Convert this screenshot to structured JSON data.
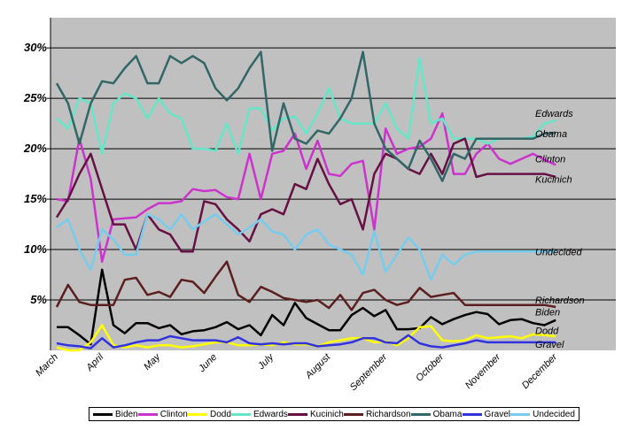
{
  "chart_data": {
    "type": "line",
    "title": "",
    "xlabel": "",
    "ylabel": "",
    "ylim": [
      0,
      33
    ],
    "y_ticks": [
      "5%",
      "10%",
      "15%",
      "20%",
      "25%",
      "30%"
    ],
    "y_tick_values": [
      5,
      10,
      15,
      20,
      25,
      30
    ],
    "x_ticks": [
      "March",
      "April",
      "May",
      "June",
      "July",
      "August",
      "September",
      "October",
      "November",
      "December"
    ],
    "x_tick_positions": [
      0,
      4,
      9,
      14,
      19,
      24,
      29,
      34,
      39,
      44
    ],
    "x_range": [
      0,
      45
    ],
    "grid": true,
    "legend": "bottom",
    "series": [
      {
        "name": "Biden",
        "color": "#000000",
        "values": [
          2.3,
          2.3,
          1.5,
          0.6,
          8,
          2.5,
          1.7,
          2.7,
          2.7,
          2.2,
          2.5,
          1.6,
          1.9,
          2,
          2.3,
          2.8,
          2.1,
          2.5,
          1.5,
          3.5,
          2.5,
          4.7,
          3.2,
          2.6,
          2,
          2,
          3.5,
          4.2,
          3.4,
          4,
          2.1,
          2.1,
          2.2,
          3.3,
          2.6,
          3.1,
          3.5,
          3.8,
          3.6,
          2.6,
          3,
          3.1,
          2.7,
          2.5,
          3
        ]
      },
      {
        "name": "Clinton",
        "color": "#cc33cc",
        "values": [
          15,
          14.8,
          21,
          17,
          8.8,
          13,
          13.1,
          13.2,
          14,
          14.6,
          14.6,
          14.8,
          16,
          15.8,
          15.9,
          15.2,
          15,
          19.5,
          15,
          19.5,
          19.8,
          21.5,
          18,
          20.8,
          17.5,
          17.3,
          18.5,
          18.8,
          12,
          22,
          19.5,
          20,
          20.2,
          21,
          23.5,
          17.5,
          17.5,
          19.5,
          20.5,
          19,
          18.5,
          19,
          19.5,
          18.9,
          18.4
        ]
      },
      {
        "name": "Dodd",
        "color": "#ffff00",
        "values": [
          0.3,
          0,
          0,
          0.8,
          2.5,
          0.5,
          0.3,
          0.5,
          0.3,
          0.5,
          0.5,
          0.3,
          0.4,
          0.6,
          0.8,
          0.8,
          0.5,
          0.5,
          0.6,
          0.5,
          0.8,
          0.6,
          0.6,
          0.4,
          0.8,
          1,
          1.2,
          1.2,
          0.8,
          0.9,
          0.5,
          1.2,
          2.3,
          2.4,
          1,
          0.9,
          1,
          1.5,
          1.2,
          1.3,
          1.4,
          1.2,
          1.6,
          1.5,
          1.4
        ]
      },
      {
        "name": "Edwards",
        "color": "#66e6c8",
        "values": [
          23,
          22,
          25,
          24.5,
          19.5,
          24.5,
          25.5,
          25,
          23,
          25,
          23.5,
          23,
          20,
          20,
          19.8,
          22.5,
          19.5,
          24,
          24,
          21.8,
          23,
          23.2,
          21.5,
          23.5,
          26,
          23,
          22.5,
          22.5,
          22.5,
          24.5,
          22,
          21,
          29,
          22.5,
          23,
          21,
          21,
          21,
          20.5,
          21,
          21,
          21,
          21.2,
          22.5,
          22.8
        ]
      },
      {
        "name": "Kucinich",
        "color": "#661144",
        "values": [
          13.2,
          15,
          17.5,
          19.5,
          16,
          12.5,
          12.5,
          10,
          13.5,
          12,
          11.5,
          9.8,
          9.8,
          14.8,
          14.5,
          13,
          12,
          10.8,
          13.5,
          14,
          13.5,
          16.5,
          16,
          19,
          16.5,
          14.5,
          15,
          12,
          17.5,
          19.5,
          19,
          18,
          17.5,
          19.5,
          17.5,
          20.5,
          21,
          17.2,
          17.5,
          17.5,
          17.5,
          17.5,
          17.5,
          17.5,
          17.2
        ]
      },
      {
        "name": "Richardson",
        "color": "#5c1f1f",
        "values": [
          4.3,
          6.5,
          4.8,
          4.5,
          4.5,
          4.5,
          7,
          7.2,
          5.5,
          5.8,
          5.3,
          7,
          6.8,
          5.7,
          7.3,
          8.8,
          5.5,
          4.8,
          6.3,
          5.8,
          5.2,
          5,
          4.8,
          5,
          4.2,
          5.5,
          4,
          5.7,
          6,
          5,
          4.5,
          4.8,
          6.2,
          5.3,
          5.5,
          5.7,
          4.5,
          4.5,
          4.5,
          4.5,
          4.5,
          4.5,
          4.5,
          4.5,
          4.3
        ]
      },
      {
        "name": "Obama",
        "color": "#336666",
        "values": [
          26.5,
          24.5,
          20.5,
          24.5,
          26.7,
          26.5,
          28,
          29.2,
          26.5,
          26.5,
          29.2,
          28.5,
          29.2,
          28.5,
          26,
          24.8,
          26,
          28,
          29.6,
          19.8,
          24.5,
          21,
          20.5,
          21.8,
          21.5,
          23,
          25,
          29.6,
          22.5,
          20,
          19,
          18,
          20.8,
          19,
          16.8,
          19.5,
          19,
          21,
          21,
          21,
          21,
          21,
          21,
          21.5,
          21.6
        ]
      },
      {
        "name": "Gravel",
        "color": "#3333dd",
        "values": [
          0.7,
          0.5,
          0.4,
          0.2,
          1.2,
          0.3,
          0.5,
          0.8,
          1,
          1,
          1.4,
          1.2,
          1,
          1,
          1,
          0.8,
          1.3,
          0.7,
          0.6,
          0.7,
          0.6,
          0.7,
          0.7,
          0.4,
          0.5,
          0.6,
          0.8,
          1.2,
          1.2,
          0.8,
          0.7,
          1.5,
          0.7,
          0.4,
          0.3,
          0.5,
          0.7,
          1,
          0.8,
          0.8,
          0.8,
          0.8,
          0.8,
          0.8,
          0.8
        ]
      },
      {
        "name": "Undecided",
        "color": "#77ccee",
        "values": [
          12.2,
          13,
          10,
          8,
          12,
          11,
          9.5,
          9.5,
          13.5,
          13,
          12,
          13.5,
          12,
          12.8,
          13.5,
          12.5,
          11.5,
          12.2,
          13,
          11.8,
          11.5,
          10,
          11.5,
          12,
          10.5,
          10,
          9.5,
          7.5,
          11.8,
          7.8,
          9.5,
          11.2,
          10,
          7,
          9.5,
          8.5,
          9.5,
          9.8,
          9.8,
          9.8,
          9.8,
          9.8,
          9.8,
          9.8,
          9.8
        ]
      }
    ],
    "end_labels": [
      {
        "text": "Edwards",
        "series": "Edwards",
        "value": 23.5
      },
      {
        "text": "Obama",
        "series": "Obama",
        "value": 21.5
      },
      {
        "text": "Clinton",
        "series": "Clinton",
        "value": 19
      },
      {
        "text": "Kucinich",
        "series": "Kucinich",
        "value": 17
      },
      {
        "text": "Undecided",
        "series": "Undecided",
        "value": 9.8
      },
      {
        "text": "Richardson",
        "series": "Richardson",
        "value": 5
      },
      {
        "text": "Biden",
        "series": "Biden",
        "value": 3.8
      },
      {
        "text": "Dodd",
        "series": "Dodd",
        "value": 1.8
      },
      {
        "text": "Gravel",
        "series": "Gravel",
        "value": 0.7
      }
    ]
  }
}
